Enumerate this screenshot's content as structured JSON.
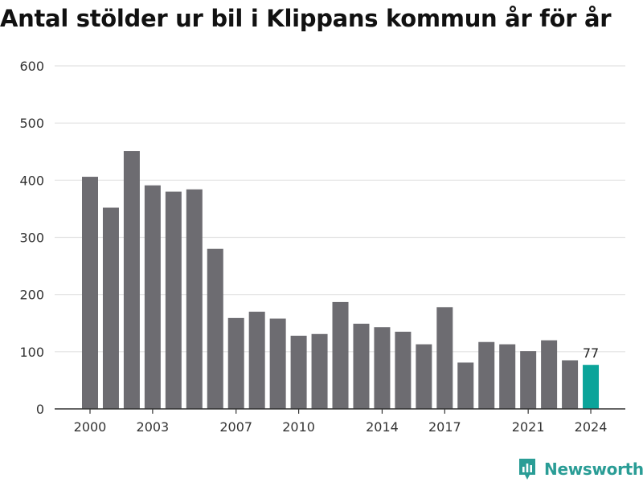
{
  "colors": {
    "bar": "#6d6c71",
    "highlight": "#0ba49a",
    "grid": "#e2e2e2",
    "axis": "#333333",
    "brand": "#2a9d96"
  },
  "brand": {
    "name": "Newsworthy",
    "icon": "newsworthy-logo-icon"
  },
  "chart_data": {
    "type": "bar",
    "title": "Antal stölder ur bil i Klippans kommun år för år",
    "xlabel": "",
    "ylabel": "",
    "ylim": [
      0,
      600
    ],
    "y_ticks": [
      0,
      100,
      200,
      300,
      400,
      500,
      600
    ],
    "x_tick_labels": [
      "2000",
      "2003",
      "2007",
      "2010",
      "2014",
      "2017",
      "2021",
      "2024"
    ],
    "grid": "horizontal",
    "categories": [
      "2000",
      "2001",
      "2002",
      "2003",
      "2004",
      "2005",
      "2006",
      "2007",
      "2008",
      "2009",
      "2010",
      "2011",
      "2012",
      "2013",
      "2014",
      "2015",
      "2016",
      "2017",
      "2018",
      "2019",
      "2020",
      "2021",
      "2022",
      "2023",
      "2024"
    ],
    "values": [
      406,
      352,
      451,
      391,
      380,
      384,
      280,
      159,
      170,
      158,
      128,
      131,
      187,
      149,
      143,
      135,
      113,
      178,
      81,
      117,
      113,
      101,
      120,
      85,
      77
    ],
    "highlight_category": "2024",
    "data_labels": [
      {
        "category": "2024",
        "text": "77"
      }
    ]
  }
}
